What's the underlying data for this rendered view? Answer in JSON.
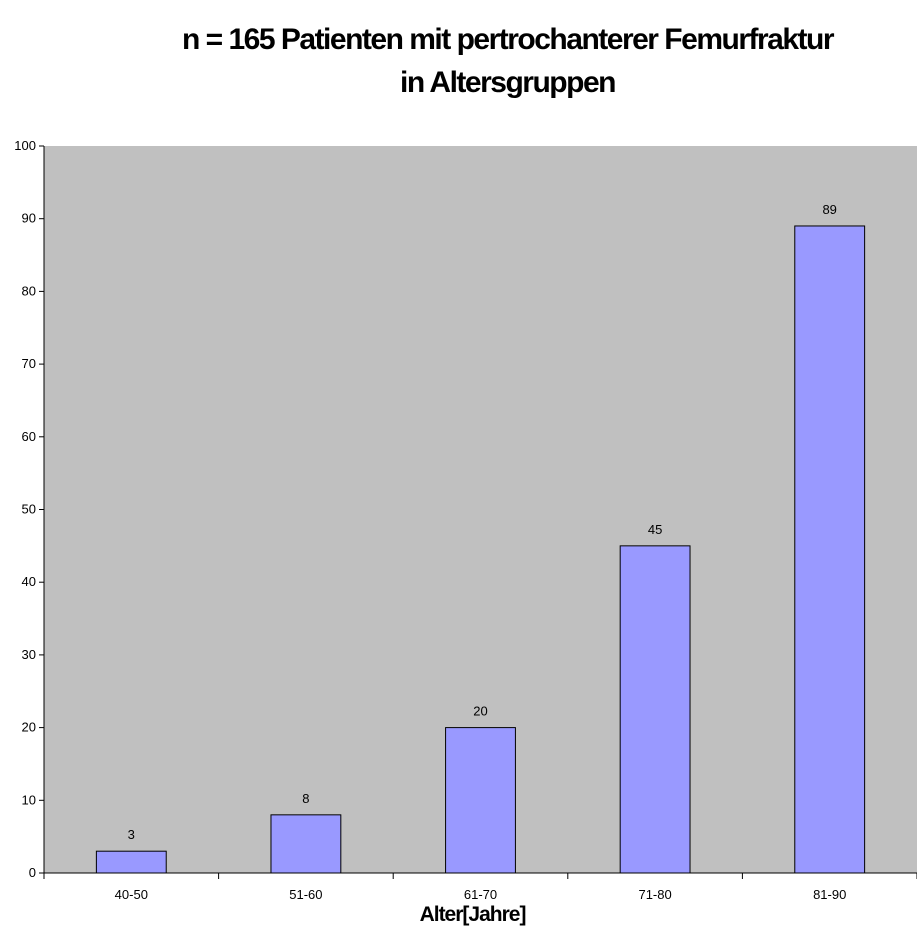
{
  "chart_data": {
    "type": "bar",
    "title": "n = 165 Patienten mit pertrochanterer Femurfraktur",
    "subtitle": "in Altersgruppen",
    "xlabel": "Alter[Jahre]",
    "ylabel": "",
    "categories": [
      "40-50",
      "51-60",
      "61-70",
      "71-80",
      "81-90"
    ],
    "values": [
      3,
      8,
      20,
      45,
      89
    ],
    "ylim": [
      0,
      100
    ],
    "yticks": [
      0,
      10,
      20,
      30,
      40,
      50,
      60,
      70,
      80,
      90,
      100
    ],
    "grid": false,
    "plot_background": "#c0c0c0",
    "bar_color": "#9999ff",
    "bar_edge": "#000000"
  }
}
